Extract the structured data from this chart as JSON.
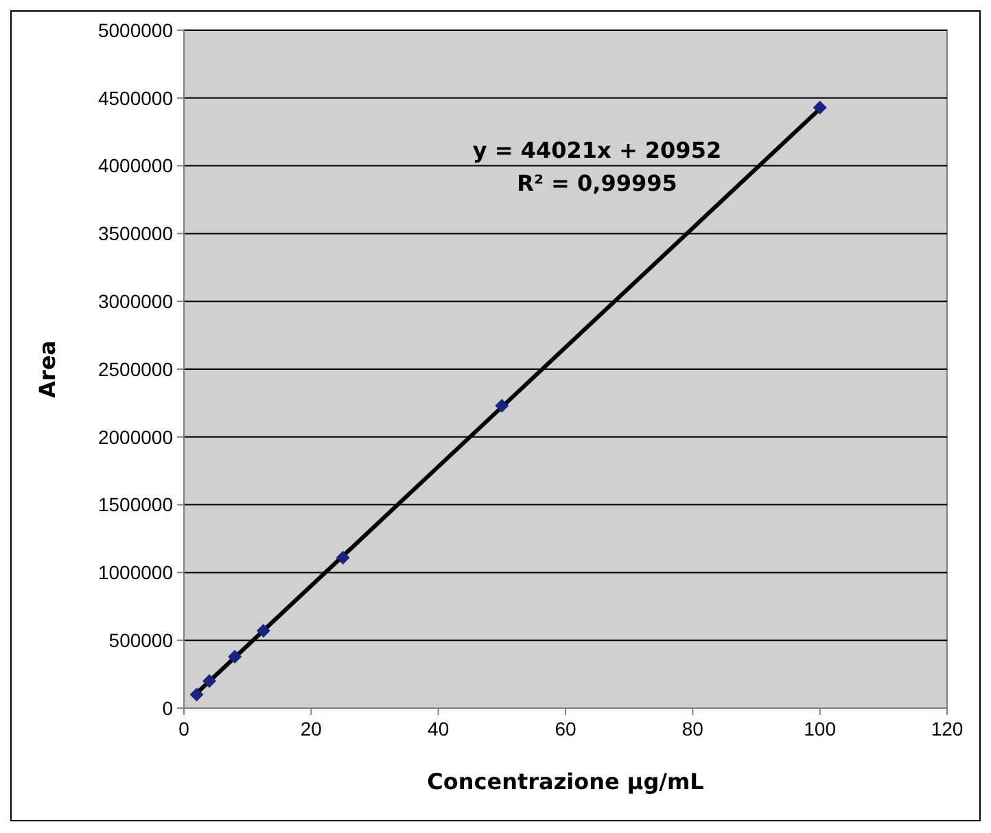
{
  "chart_data": {
    "type": "scatter",
    "xlabel": "Concentrazione µg/mL",
    "ylabel": "Area",
    "annotations": [
      "y = 44021x + 20952",
      "R² = 0,99995"
    ],
    "series": [
      {
        "color": "#1a237e",
        "marker": "diamond",
        "x": [
          2,
          4,
          8,
          12.5,
          25,
          50,
          100
        ],
        "values": [
          100000,
          200000,
          380000,
          570000,
          1110000,
          2230000,
          4430000
        ]
      },
      {
        "type": "line",
        "color": "#000000",
        "marker": "none",
        "line_style": "solid",
        "x": [
          2,
          100
        ],
        "values": [
          110000,
          4420000
        ]
      }
    ],
    "xlim": [
      0,
      120
    ],
    "xticks": [
      0,
      20,
      40,
      60,
      80,
      100,
      120
    ],
    "ylim": [
      0,
      5000000
    ],
    "yticks": [
      0,
      500000,
      1000000,
      1500000,
      2000000,
      2500000,
      3000000,
      3500000,
      4000000,
      4500000,
      5000000
    ],
    "grid": "y"
  }
}
